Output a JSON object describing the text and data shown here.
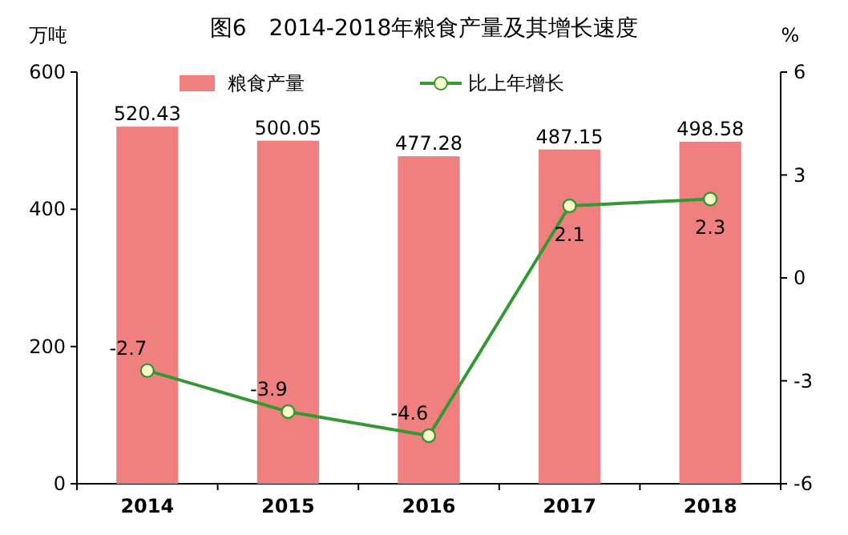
{
  "chart_data": {
    "type": "bar",
    "title": "图6　2014-2018年粮食产量及其增长速度",
    "ylabel": "万吨",
    "y2label": "%",
    "categories": [
      "2014",
      "2015",
      "2016",
      "2017",
      "2018"
    ],
    "series": [
      {
        "name": "粮食产量",
        "color": "#f08080",
        "values": [
          520.43,
          500.05,
          477.28,
          487.15,
          498.58
        ]
      },
      {
        "name": "比上年增长",
        "type": "line",
        "axis": "y2",
        "color": "#339933",
        "marker": "circle",
        "values": [
          -2.7,
          -3.9,
          -4.6,
          2.1,
          2.3
        ]
      }
    ],
    "ylim": [
      0,
      600
    ],
    "yticks": [
      0,
      200,
      400,
      600
    ],
    "y2lim": [
      -6,
      6
    ],
    "y2ticks": [
      -6,
      -3,
      0,
      3,
      6
    ],
    "data_labels": true,
    "legend": "top",
    "grid": false
  }
}
